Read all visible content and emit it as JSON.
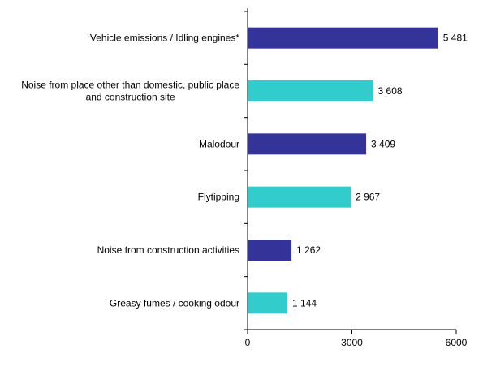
{
  "chart_data": {
    "type": "bar",
    "orientation": "horizontal",
    "categories": [
      [
        "Vehicle emissions / Idling engines*"
      ],
      [
        "Noise from place other than domestic, public place",
        "and construction site"
      ],
      [
        "Malodour"
      ],
      [
        "Flytipping"
      ],
      [
        "Noise from construction activities"
      ],
      [
        "Greasy fumes / cooking odour"
      ]
    ],
    "values": [
      5481,
      3608,
      3409,
      2967,
      1262,
      1144
    ],
    "value_labels": [
      "5 481",
      "3 608",
      "3 409",
      "2 967",
      "1 262",
      "1 144"
    ],
    "bar_colors": [
      "#333399",
      "#33CCCC",
      "#333399",
      "#33CCCC",
      "#333399",
      "#33CCCC"
    ],
    "xlim": [
      0,
      6000
    ],
    "xticks": [
      0,
      3000,
      6000
    ],
    "xtick_labels": [
      "0",
      "3000",
      "6000"
    ],
    "title": "",
    "xlabel": "",
    "ylabel": "",
    "grid": false,
    "legend": "none"
  }
}
